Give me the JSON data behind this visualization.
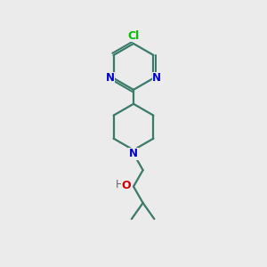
{
  "background_color": "#ebebeb",
  "bond_color": "#3a7a6a",
  "n_color": "#0000cc",
  "o_color": "#cc0000",
  "cl_color": "#00bb00",
  "h_color": "#666666",
  "line_width": 1.6,
  "fig_size": [
    3.0,
    3.0
  ],
  "dpi": 100,
  "xlim": [
    0,
    10
  ],
  "ylim": [
    0,
    10
  ]
}
